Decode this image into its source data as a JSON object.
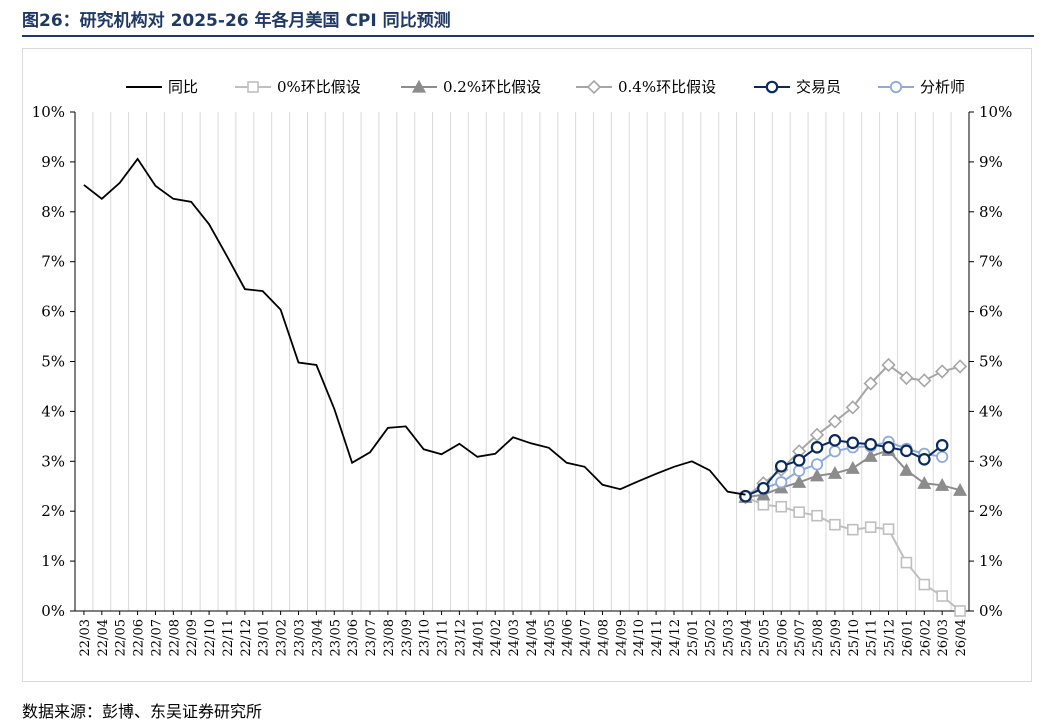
{
  "figure_title": "图26：研究机构对 2025-26 年各月美国 CPI 同比预测",
  "source": "数据来源：彭博、东吴证券研究所",
  "colors": {
    "title": "#1f3864",
    "actual": "#000000",
    "zero": "#bfbfbf",
    "point2": "#8c8c8c",
    "point4": "#a6a6a6",
    "trader": "#0b2a5b",
    "analyst": "#8eaadb",
    "grid": "#d9d9d9"
  },
  "chart_data": {
    "type": "line",
    "ylim": [
      0,
      10
    ],
    "y_ticks": [
      "0%",
      "1%",
      "2%",
      "3%",
      "4%",
      "5%",
      "6%",
      "7%",
      "8%",
      "9%",
      "10%"
    ],
    "categories": [
      "22/03",
      "22/04",
      "22/05",
      "22/06",
      "22/07",
      "22/08",
      "22/09",
      "22/10",
      "22/11",
      "22/12",
      "23/01",
      "23/02",
      "23/03",
      "23/04",
      "23/05",
      "23/06",
      "23/07",
      "23/08",
      "23/09",
      "23/10",
      "23/11",
      "23/12",
      "24/01",
      "24/02",
      "24/03",
      "24/04",
      "24/05",
      "24/06",
      "24/07",
      "24/08",
      "24/09",
      "24/10",
      "24/11",
      "24/12",
      "25/01",
      "25/02",
      "25/03",
      "25/04",
      "25/05",
      "25/06",
      "25/07",
      "25/08",
      "25/09",
      "25/10",
      "25/11",
      "25/12",
      "26/01",
      "26/02",
      "26/03",
      "26/04"
    ],
    "series": [
      {
        "name": "同比",
        "key": "actual",
        "marker": "none",
        "values": [
          8.54,
          8.26,
          8.58,
          9.06,
          8.52,
          8.26,
          8.2,
          7.75,
          7.11,
          6.45,
          6.41,
          6.04,
          4.98,
          4.93,
          4.05,
          2.97,
          3.18,
          3.67,
          3.7,
          3.24,
          3.14,
          3.35,
          3.09,
          3.15,
          3.48,
          3.36,
          3.27,
          2.97,
          2.89,
          2.53,
          2.44,
          2.6,
          2.75,
          2.89,
          3.0,
          2.82,
          2.39,
          2.33,
          null,
          null,
          null,
          null,
          null,
          null,
          null,
          null,
          null,
          null,
          null,
          null
        ]
      },
      {
        "name": "0%环比假设",
        "key": "zero",
        "marker": "square",
        "values": [
          null,
          null,
          null,
          null,
          null,
          null,
          null,
          null,
          null,
          null,
          null,
          null,
          null,
          null,
          null,
          null,
          null,
          null,
          null,
          null,
          null,
          null,
          null,
          null,
          null,
          null,
          null,
          null,
          null,
          null,
          null,
          null,
          null,
          null,
          null,
          null,
          null,
          2.28,
          2.13,
          2.09,
          1.98,
          1.91,
          1.73,
          1.63,
          1.68,
          1.64,
          0.97,
          0.53,
          0.3,
          0.0
        ]
      },
      {
        "name": "0.2%环比假设",
        "key": "point2",
        "marker": "triangle",
        "values": [
          null,
          null,
          null,
          null,
          null,
          null,
          null,
          null,
          null,
          null,
          null,
          null,
          null,
          null,
          null,
          null,
          null,
          null,
          null,
          null,
          null,
          null,
          null,
          null,
          null,
          null,
          null,
          null,
          null,
          null,
          null,
          null,
          null,
          null,
          null,
          null,
          null,
          2.28,
          2.33,
          2.47,
          2.58,
          2.71,
          2.76,
          2.86,
          3.1,
          3.22,
          2.82,
          2.56,
          2.52,
          2.42
        ]
      },
      {
        "name": "0.4%环比假设",
        "key": "point4",
        "marker": "diamond",
        "values": [
          null,
          null,
          null,
          null,
          null,
          null,
          null,
          null,
          null,
          null,
          null,
          null,
          null,
          null,
          null,
          null,
          null,
          null,
          null,
          null,
          null,
          null,
          null,
          null,
          null,
          null,
          null,
          null,
          null,
          null,
          null,
          null,
          null,
          null,
          null,
          null,
          null,
          2.28,
          2.56,
          2.83,
          3.2,
          3.53,
          3.8,
          4.08,
          4.56,
          4.93,
          4.67,
          4.62,
          4.8,
          4.9
        ]
      },
      {
        "name": "交易员",
        "key": "trader",
        "marker": "circle",
        "values": [
          null,
          null,
          null,
          null,
          null,
          null,
          null,
          null,
          null,
          null,
          null,
          null,
          null,
          null,
          null,
          null,
          null,
          null,
          null,
          null,
          null,
          null,
          null,
          null,
          null,
          null,
          null,
          null,
          null,
          null,
          null,
          null,
          null,
          null,
          null,
          null,
          null,
          2.3,
          2.46,
          2.9,
          3.02,
          3.28,
          3.42,
          3.37,
          3.34,
          3.28,
          3.21,
          3.04,
          3.32,
          null
        ]
      },
      {
        "name": "分析师",
        "key": "analyst",
        "marker": "circle",
        "values": [
          null,
          null,
          null,
          null,
          null,
          null,
          null,
          null,
          null,
          null,
          null,
          null,
          null,
          null,
          null,
          null,
          null,
          null,
          null,
          null,
          null,
          null,
          null,
          null,
          null,
          null,
          null,
          null,
          null,
          null,
          null,
          null,
          null,
          null,
          null,
          null,
          null,
          2.3,
          2.46,
          2.58,
          2.81,
          2.94,
          3.2,
          3.28,
          3.3,
          3.39,
          3.25,
          3.15,
          3.09,
          null
        ]
      }
    ]
  }
}
